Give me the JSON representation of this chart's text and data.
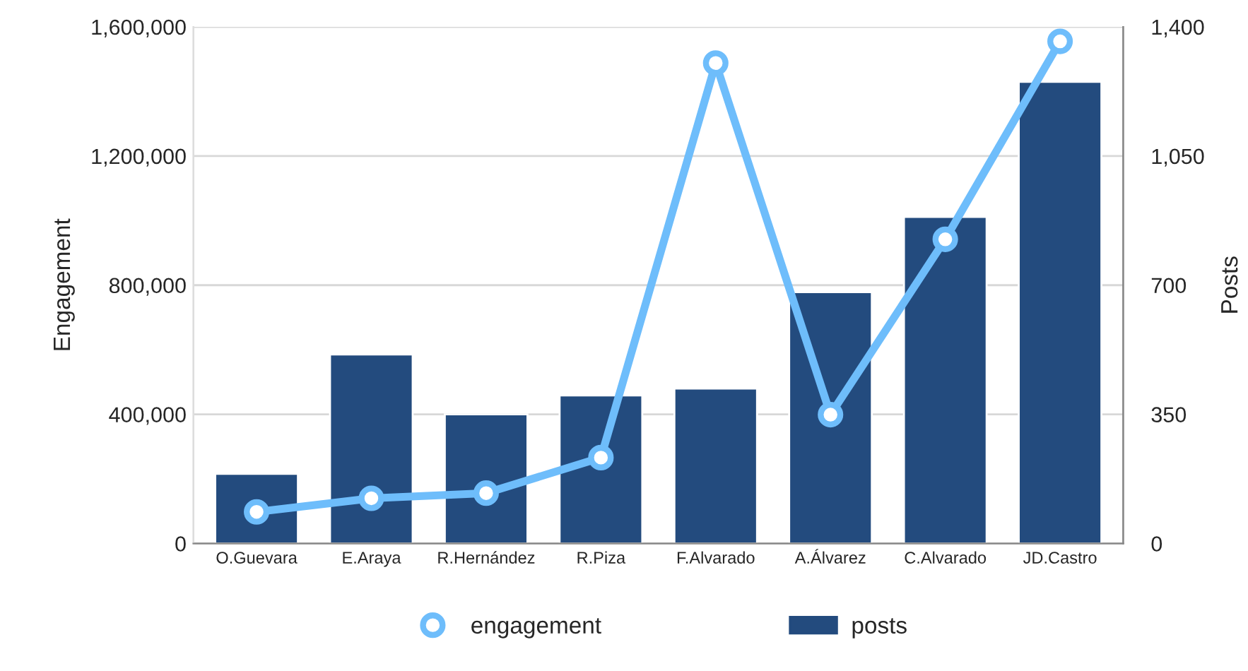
{
  "chart_data": {
    "type": "bar",
    "categories": [
      "O.Guevara",
      "E.Araya",
      "R.Hernández",
      "R.Piza",
      "F.Alvarado",
      "A.Álvarez",
      "C.Alvarado",
      "JD.Castro"
    ],
    "ylabel": "Engagement",
    "y2label": "Posts",
    "ylim": [
      0,
      1600000
    ],
    "yticks": [
      {
        "value": 0,
        "label": "0"
      },
      {
        "value": 400000,
        "label": "400,000"
      },
      {
        "value": 800000,
        "label": "800,000"
      },
      {
        "value": 1200000,
        "label": "1,200,000"
      },
      {
        "value": 1600000,
        "label": "1,600,000"
      }
    ],
    "y2lim": [
      0,
      1400
    ],
    "y2ticks": [
      0,
      350,
      700,
      {
        "value": 1050,
        "label": "1,050"
      },
      {
        "value": 1400,
        "label": "1,400"
      }
    ],
    "grid": "y",
    "legend": "bottom",
    "series": [
      {
        "name": "engagement",
        "type": "line",
        "marker": "circle",
        "color": "#6ebdfb",
        "values": [
          98000,
          140000,
          156000,
          266000,
          1488000,
          399000,
          942000,
          1555000
        ]
      },
      {
        "name": "posts",
        "axis": "y2",
        "color": "#234b7e",
        "values": [
          189,
          512,
          350,
          401,
          420,
          681,
          885,
          1251
        ]
      }
    ]
  }
}
